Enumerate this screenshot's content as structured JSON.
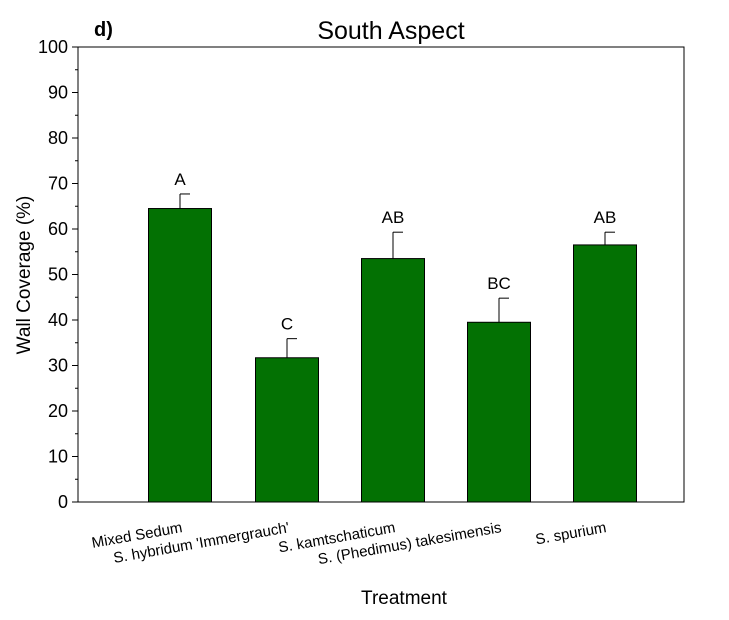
{
  "chart_data": {
    "type": "bar",
    "panel_label": "d)",
    "title": "South Aspect",
    "xlabel": "Treatment",
    "ylabel": "Wall Coverage (%)",
    "ylim": [
      0,
      100
    ],
    "yticks": [
      "0",
      "10",
      "20",
      "30",
      "40",
      "50",
      "60",
      "70",
      "80",
      "90",
      "100"
    ],
    "categories": [
      "Mixed Sedum",
      "S. hybridum 'Immergrauch'",
      "S. kamtschaticum",
      "S. (Phedimus) takesimensis",
      "S. spurium"
    ],
    "values": [
      64.5,
      31.7,
      53.5,
      39.5,
      56.5
    ],
    "error_upper": [
      3.2,
      4.2,
      5.8,
      5.3,
      2.8
    ],
    "significance_letters": [
      "A",
      "C",
      "AB",
      "BC",
      "AB"
    ],
    "bar_color": "#037103",
    "grid": false
  }
}
